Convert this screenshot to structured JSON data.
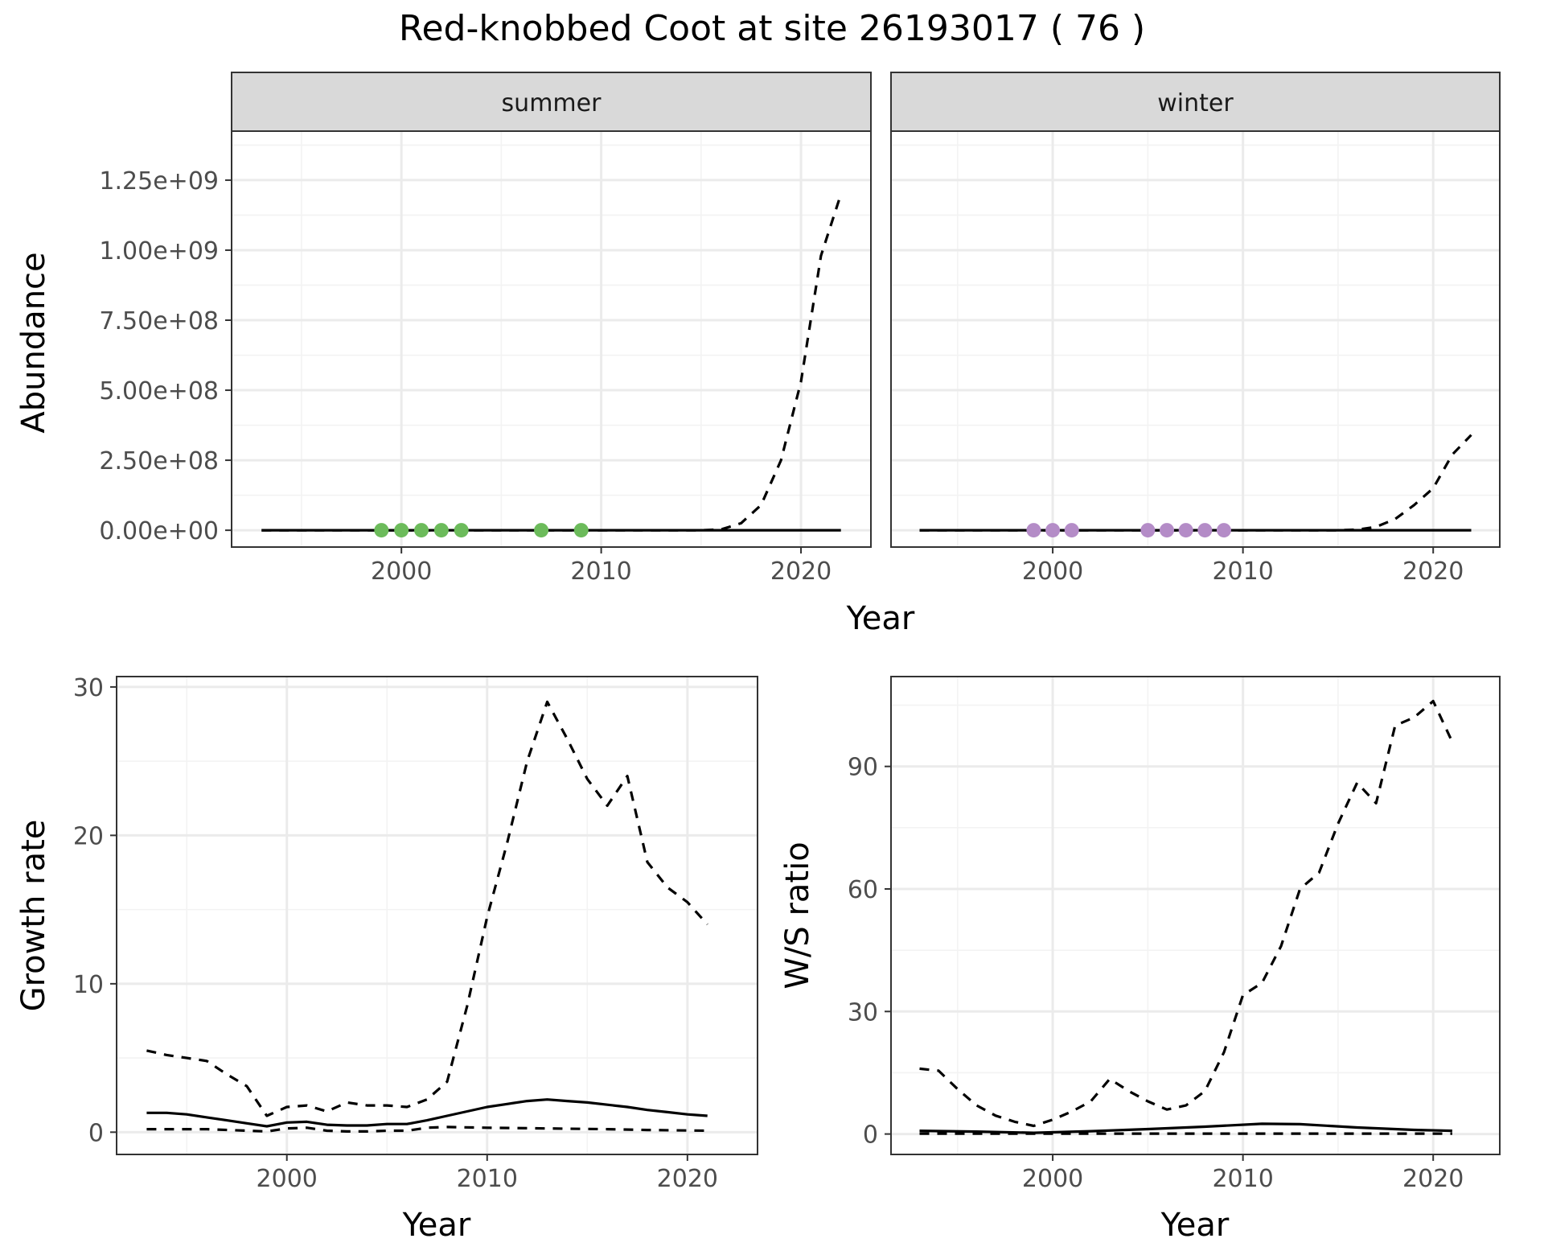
{
  "title": "Red-knobbed Coot at site 26193017 ( 76 )",
  "colors": {
    "summer_points": "#6CBB5B",
    "winter_points": "#B48CC7",
    "line": "#000000",
    "strip_fill": "#D9D9D9",
    "grid_major": "#EBEBEB",
    "grid_minor": "#F3F3F3"
  },
  "chart_data": [
    {
      "type": "line",
      "panel": "summer",
      "strip_label": "summer",
      "xlabel": "Year",
      "ylabel": "Abundance",
      "xlim": [
        1991.5,
        2023.5
      ],
      "ylim": [
        -60000000,
        1425000000
      ],
      "x_ticks": [
        2000,
        2010,
        2020
      ],
      "x_tick_labels": [
        "2000",
        "2010",
        "2020"
      ],
      "y_ticks": [
        0,
        250000000,
        500000000,
        750000000,
        1000000000,
        1250000000
      ],
      "y_tick_labels": [
        "0.00e+00",
        "2.50e+08",
        "5.00e+08",
        "7.50e+08",
        "1.00e+09",
        "1.25e+09"
      ],
      "series": [
        {
          "style": "solid",
          "x": [
            1993,
            2022
          ],
          "y": [
            0,
            0
          ]
        },
        {
          "style": "dashed",
          "x": [
            1993,
            2015,
            2016,
            2017,
            2018,
            2019,
            2020,
            2021,
            2022
          ],
          "y": [
            0,
            0,
            3000000,
            25000000,
            90000000,
            250000000,
            530000000,
            980000000,
            1200000000
          ]
        }
      ],
      "points": {
        "x": [
          1999,
          2000,
          2001,
          2002,
          2003,
          2007,
          2009
        ],
        "y": [
          0,
          0,
          0,
          0,
          0,
          0,
          0
        ]
      }
    },
    {
      "type": "line",
      "panel": "winter",
      "strip_label": "winter",
      "xlabel": "Year",
      "ylabel": "Abundance",
      "xlim": [
        1991.5,
        2023.5
      ],
      "ylim": [
        -60000000,
        1425000000
      ],
      "x_ticks": [
        2000,
        2010,
        2020
      ],
      "x_tick_labels": [
        "2000",
        "2010",
        "2020"
      ],
      "series": [
        {
          "style": "solid",
          "x": [
            1993,
            2022
          ],
          "y": [
            0,
            0
          ]
        },
        {
          "style": "dashed",
          "x": [
            1993,
            2015,
            2016,
            2017,
            2018,
            2019,
            2020,
            2021,
            2022
          ],
          "y": [
            0,
            0,
            2000000,
            12000000,
            40000000,
            90000000,
            150000000,
            270000000,
            340000000
          ]
        }
      ],
      "points": {
        "x": [
          1999,
          2000,
          2001,
          2005,
          2006,
          2007,
          2008,
          2009
        ],
        "y": [
          0,
          0,
          0,
          0,
          0,
          0,
          0,
          0
        ]
      }
    },
    {
      "type": "line",
      "panel": "growth",
      "xlabel": "Year",
      "ylabel": "Growth rate",
      "xlim": [
        1991.5,
        2023.5
      ],
      "ylim": [
        -1.5,
        30.7
      ],
      "x_ticks": [
        2000,
        2010,
        2020
      ],
      "x_tick_labels": [
        "2000",
        "2010",
        "2020"
      ],
      "y_ticks": [
        0,
        10,
        20,
        30
      ],
      "y_tick_labels": [
        "0",
        "10",
        "20",
        "30"
      ],
      "series": [
        {
          "style": "dashed",
          "x": [
            1993,
            1994,
            1995,
            1996,
            1997,
            1998,
            1999,
            2000,
            2001,
            2002,
            2003,
            2004,
            2005,
            2006,
            2007,
            2008,
            2009,
            2010,
            2011,
            2012,
            2013,
            2014,
            2015,
            2016,
            2017,
            2018,
            2019,
            2020,
            2021
          ],
          "y": [
            5.5,
            5.2,
            5.0,
            4.8,
            3.9,
            3.1,
            1.1,
            1.7,
            1.8,
            1.4,
            2.0,
            1.8,
            1.8,
            1.7,
            2.2,
            3.4,
            8.5,
            14.5,
            19.5,
            25.0,
            29.0,
            26.5,
            23.8,
            22.0,
            24.0,
            18.2,
            16.5,
            15.5,
            14.0
          ]
        },
        {
          "style": "solid",
          "x": [
            1993,
            1994,
            1995,
            1996,
            1997,
            1998,
            1999,
            2000,
            2001,
            2002,
            2003,
            2004,
            2005,
            2006,
            2007,
            2008,
            2009,
            2010,
            2011,
            2012,
            2013,
            2014,
            2015,
            2016,
            2017,
            2018,
            2019,
            2020,
            2021
          ],
          "y": [
            1.3,
            1.3,
            1.2,
            1.0,
            0.8,
            0.6,
            0.4,
            0.65,
            0.7,
            0.5,
            0.45,
            0.45,
            0.55,
            0.55,
            0.8,
            1.1,
            1.4,
            1.7,
            1.9,
            2.1,
            2.2,
            2.1,
            2.0,
            1.85,
            1.7,
            1.5,
            1.35,
            1.2,
            1.1
          ]
        },
        {
          "style": "dashed",
          "x": [
            1993,
            1996,
            1999,
            2000,
            2001,
            2002,
            2003,
            2004,
            2005,
            2006,
            2007,
            2008,
            2010,
            2013,
            2016,
            2018,
            2021
          ],
          "y": [
            0.2,
            0.2,
            0.05,
            0.25,
            0.3,
            0.1,
            0.05,
            0.05,
            0.1,
            0.1,
            0.3,
            0.35,
            0.3,
            0.25,
            0.2,
            0.15,
            0.1
          ]
        }
      ]
    },
    {
      "type": "line",
      "panel": "ws_ratio",
      "xlabel": "Year",
      "ylabel": "W/S ratio",
      "xlim": [
        1991.5,
        2023.5
      ],
      "ylim": [
        -5,
        112
      ],
      "x_ticks": [
        2000,
        2010,
        2020
      ],
      "x_tick_labels": [
        "2000",
        "2010",
        "2020"
      ],
      "y_ticks": [
        0,
        30,
        60,
        90
      ],
      "y_tick_labels": [
        "0",
        "30",
        "60",
        "90"
      ],
      "series": [
        {
          "style": "dashed",
          "x": [
            1993,
            1994,
            1995,
            1996,
            1997,
            1998,
            1999,
            2000,
            2001,
            2002,
            2003,
            2004,
            2005,
            2006,
            2007,
            2008,
            2009,
            2010,
            2011,
            2012,
            2013,
            2014,
            2015,
            2016,
            2017,
            2018,
            2019,
            2020,
            2021
          ],
          "y": [
            16,
            15.5,
            11,
            7,
            4.5,
            3,
            2,
            3.5,
            5.5,
            8,
            13.5,
            10.5,
            8,
            6,
            7,
            10.5,
            20,
            34,
            37,
            46,
            60,
            64,
            76,
            86,
            81,
            100,
            102,
            106,
            96
          ]
        },
        {
          "style": "solid",
          "x": [
            1993,
            1996,
            1999,
            2002,
            2005,
            2008,
            2011,
            2013,
            2016,
            2019,
            2021
          ],
          "y": [
            0.8,
            0.6,
            0.3,
            0.7,
            1.2,
            1.8,
            2.5,
            2.4,
            1.6,
            1.0,
            0.8
          ]
        },
        {
          "style": "dashed",
          "x": [
            1993,
            2021
          ],
          "y": [
            0.1,
            0.1
          ]
        }
      ]
    }
  ]
}
